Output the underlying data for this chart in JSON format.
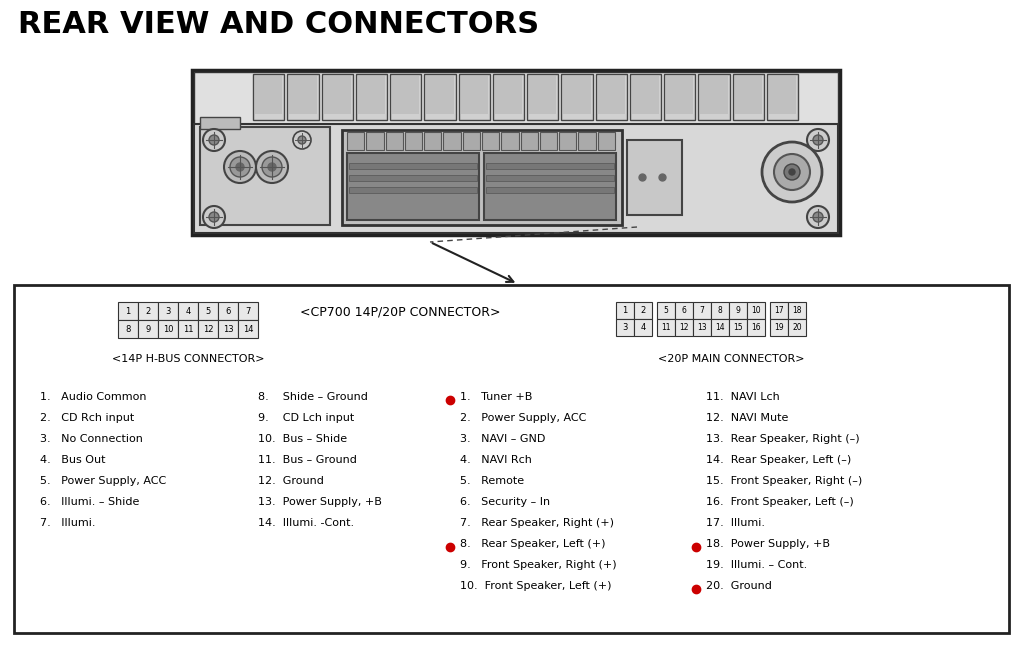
{
  "title": "REAR VIEW AND CONNECTORS",
  "bg_color": "#ffffff",
  "title_color": "#000000",
  "title_fontsize": 22,
  "connector_label": "<CP700 14P/20P CONNECTOR>",
  "hbus_label": "<14P H-BUS CONNECTOR>",
  "main_label": "<20P MAIN CONNECTOR>",
  "hbus_pins_row1": [
    "1",
    "2",
    "3",
    "4",
    "5",
    "6",
    "7"
  ],
  "hbus_pins_row2": [
    "8",
    "9",
    "10",
    "11",
    "12",
    "13",
    "14"
  ],
  "hbus_items_col1": [
    "1.   Audio Common",
    "2.   CD Rch input",
    "3.   No Connection",
    "4.   Bus Out",
    "5.   Power Supply, ACC",
    "6.   Illumi. – Shide",
    "7.   Illumi."
  ],
  "hbus_items_col2": [
    "8.    Shide – Ground",
    "9.    CD Lch input",
    "10.  Bus – Shide",
    "11.  Bus – Ground",
    "12.  Ground",
    "13.  Power Supply, +B",
    "14.  Illumi. -Cont."
  ],
  "main_items_col1": [
    "1.   Tuner +B",
    "2.   Power Supply, ACC",
    "3.   NAVI – GND",
    "4.   NAVI Rch",
    "5.   Remote",
    "6.   Security – In",
    "7.   Rear Speaker, Right (+)",
    "8.   Rear Speaker, Left (+)",
    "9.   Front Speaker, Right (+)",
    "10.  Front Speaker, Left (+)"
  ],
  "main_items_col2": [
    "11.  NAVI Lch",
    "12.  NAVI Mute",
    "13.  Rear Speaker, Right (–)",
    "14.  Rear Speaker, Left (–)",
    "15.  Front Speaker, Right (–)",
    "16.  Front Speaker, Left (–)",
    "17.  Illumi.",
    "18.  Power Supply, +B",
    "19.  Illumi. – Cont.",
    "20.  Ground"
  ],
  "red_dot_col1_indices": [
    0,
    7
  ],
  "red_dot_col2_indices": [
    7,
    9
  ]
}
